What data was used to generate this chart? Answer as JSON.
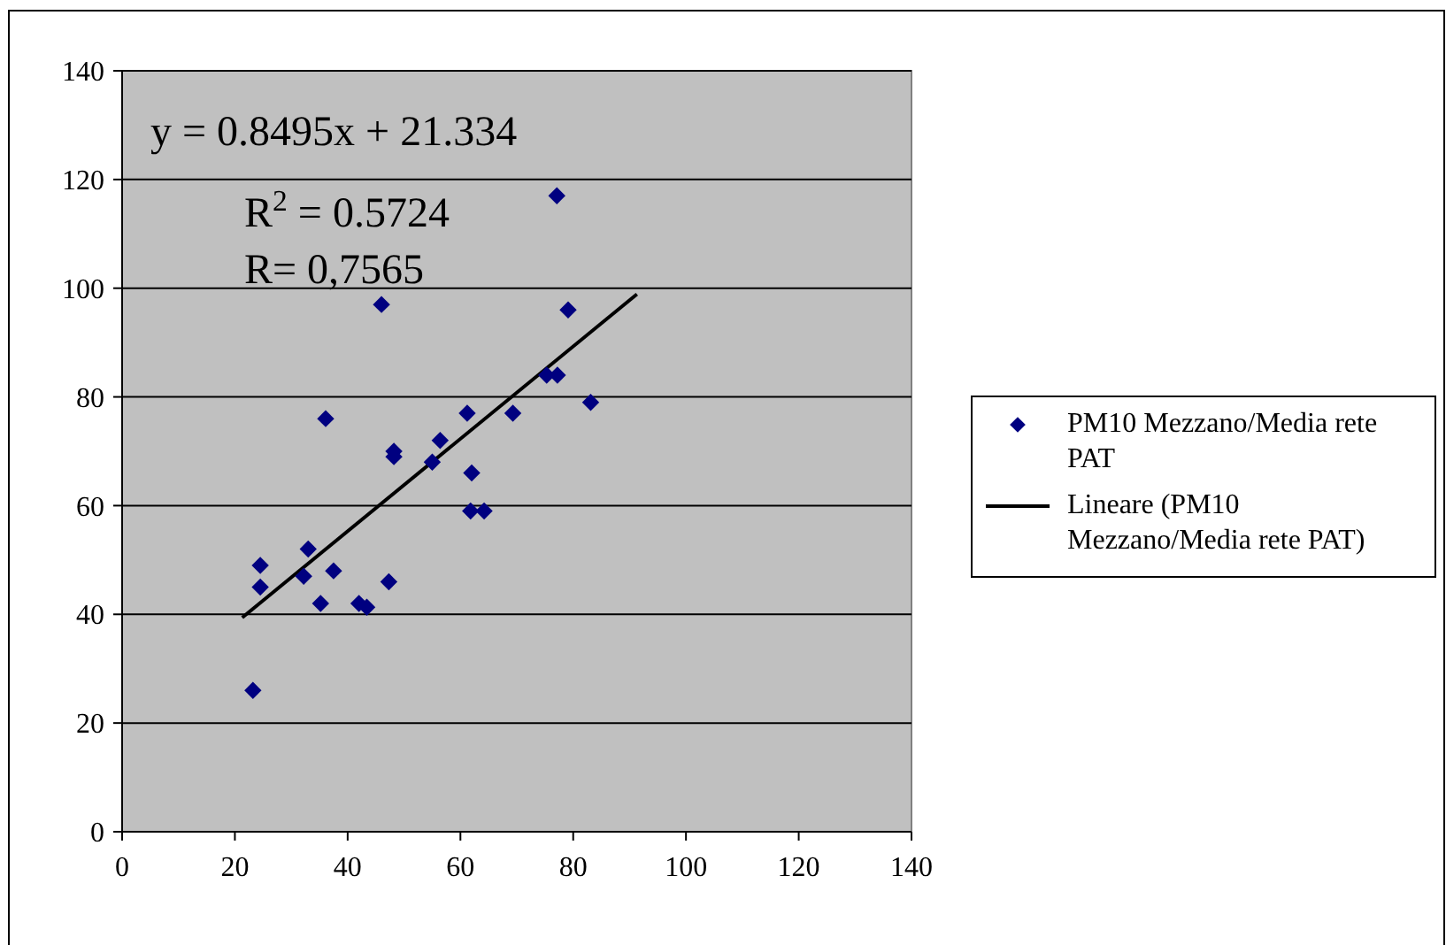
{
  "chart_data": {
    "type": "scatter",
    "xlim": [
      0,
      140
    ],
    "ylim": [
      0,
      140
    ],
    "xticks": [
      0,
      20,
      40,
      60,
      80,
      100,
      120,
      140
    ],
    "yticks": [
      0,
      20,
      40,
      60,
      80,
      100,
      120,
      140
    ],
    "grid": "y",
    "legend": "right",
    "marker": "diamond",
    "annotations": [
      "y = 0.8495x + 21.334",
      "R$^{2}$ = 0.5724",
      "R= 0,7565"
    ],
    "series": [
      {
        "name": "PM10 Mezzano/Media rete PAT",
        "color": "#000080",
        "x": [
          23.2,
          24.5,
          24.5,
          33,
          32.2,
          35.2,
          37.5,
          36.1,
          42,
          43.4,
          47.3,
          46,
          48.2,
          48.2,
          55,
          56.4,
          61.2,
          62,
          61.8,
          64.2,
          69.3,
          75.3,
          77.2,
          77.1,
          79.1,
          83.1
        ],
        "values": [
          26,
          49,
          45,
          52,
          47,
          42,
          48,
          76,
          42,
          41.3,
          46,
          97,
          70,
          69,
          68,
          72,
          77,
          66,
          59,
          59,
          77,
          84,
          84,
          117,
          96,
          79
        ]
      },
      {
        "name": "Lineare (PM10 Mezzano/Media rete PAT)",
        "type": "line",
        "marker": "none",
        "color": "#000000",
        "line_style": "solid",
        "x": [
          21.3,
          91.3
        ],
        "values": [
          39.4,
          98.9
        ]
      }
    ]
  }
}
